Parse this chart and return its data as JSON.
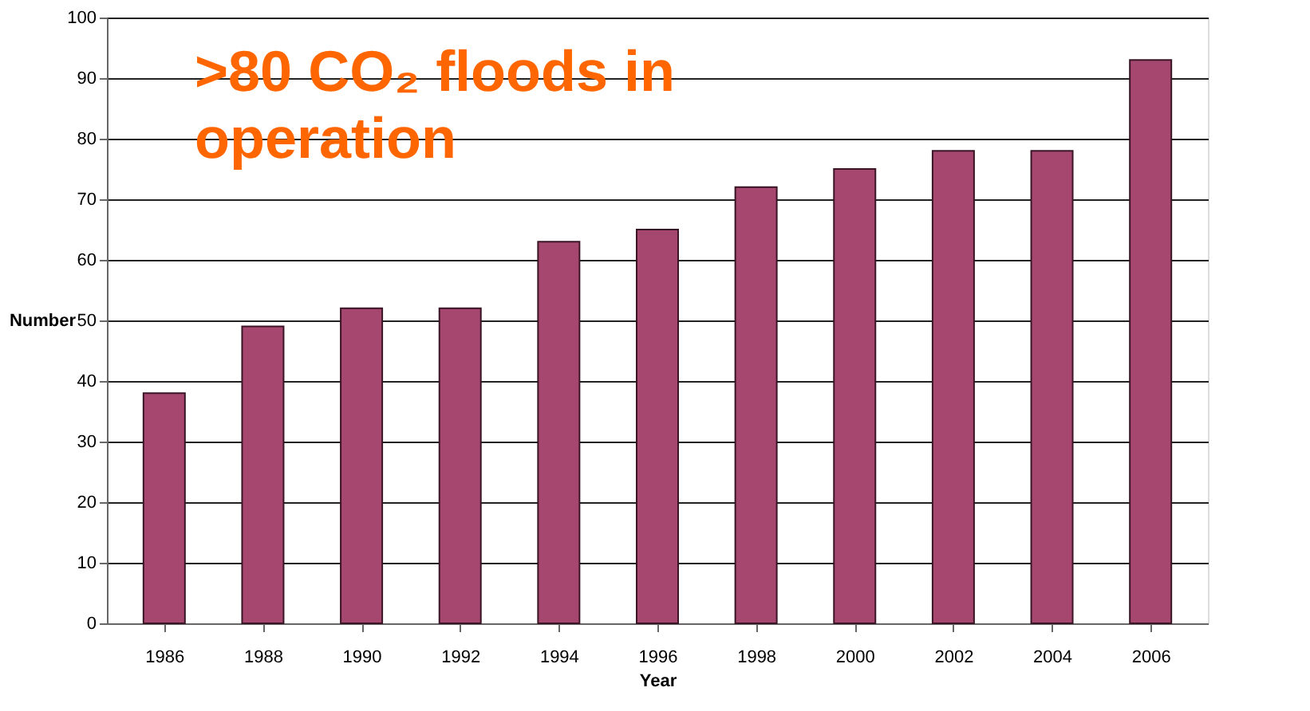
{
  "chart_data": {
    "type": "bar",
    "xlabel": "Year",
    "ylabel": "Number",
    "categories": [
      "1986",
      "1988",
      "1990",
      "1992",
      "1994",
      "1996",
      "1998",
      "2000",
      "2002",
      "2004",
      "2006"
    ],
    "values": [
      38,
      49,
      52,
      52,
      63,
      65,
      72,
      75,
      78,
      78,
      93
    ],
    "color": "#a6476f",
    "ylim": [
      0,
      100
    ],
    "yticks": [
      0,
      10,
      20,
      30,
      40,
      50,
      60,
      70,
      80,
      90,
      100
    ],
    "grid": "y",
    "annotations": [
      ">80 CO₂ floods in operation"
    ]
  }
}
